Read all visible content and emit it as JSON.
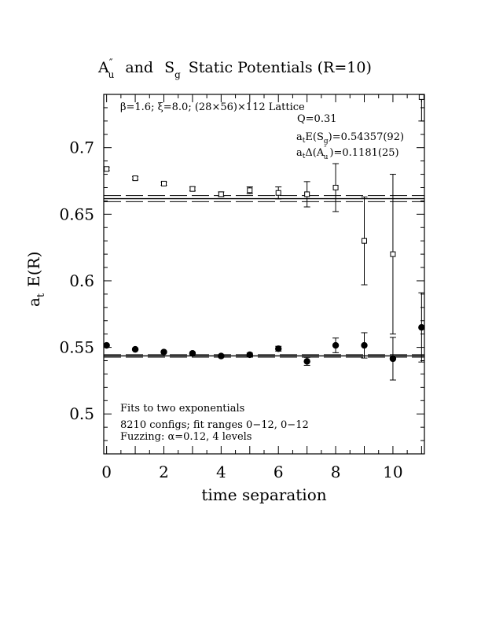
{
  "chart_data": {
    "type": "scatter",
    "title_main": "A",
    "title_main_sup": "″",
    "title_main_sub": "u",
    "title_and": "and",
    "title_s": "S",
    "title_s_sub": "g",
    "title_rest": "Static Potentials (R=10)",
    "xlabel": "time separation",
    "ylabel_a": "a",
    "ylabel_sub": "t",
    "ylabel_rest": "E(R)",
    "xlim": [
      -0.1,
      11.1
    ],
    "ylim": [
      0.47,
      0.74
    ],
    "xticks": [
      0,
      2,
      4,
      6,
      8,
      10
    ],
    "xtick_labels": [
      "0",
      "2",
      "4",
      "6",
      "8",
      "10"
    ],
    "yticks": [
      0.5,
      0.55,
      0.6,
      0.65,
      0.7
    ],
    "ytick_labels": [
      "0.5",
      "0.55",
      "0.6",
      "0.65",
      "0.7"
    ],
    "top_annotation": "β=1.6; ξ=8.0; (28×56)×112 Lattice",
    "q_label": "Q=0.31",
    "es_label_a": "a",
    "es_label_sub": "t",
    "es_label_rest": "E(S",
    "es_label_g": "g",
    "es_label_val": ")=0.54357(92)",
    "da_label_a": "a",
    "da_label_sub": "t",
    "da_label_rest": "Δ(A",
    "da_label_sup": "″",
    "da_label_u": "u",
    "da_label_val": ")=0.1181(25)",
    "bottom_note_1": "Fits to two exponentials",
    "bottom_note_2": "8210 configs; fit ranges 0−12, 0−12",
    "bottom_note_3_prefix": "Fuzzing: ",
    "bottom_note_3_alpha": "α",
    "bottom_note_3_suffix": "=0.12, 4 levels",
    "series": [
      {
        "name": "A″u",
        "marker": "open-square",
        "x": [
          0,
          1,
          2,
          3,
          4,
          5,
          6,
          7,
          8,
          9,
          10,
          11
        ],
        "y": [
          0.684,
          0.677,
          0.673,
          0.669,
          0.665,
          0.668,
          0.666,
          0.665,
          0.67,
          0.63,
          0.62,
          0.738
        ],
        "err": [
          0.0012,
          0.0012,
          0.0012,
          0.0015,
          0.0018,
          0.0025,
          0.0045,
          0.0095,
          0.018,
          0.033,
          0.06,
          0.018
        ]
      },
      {
        "name": "Sg",
        "marker": "filled-circle",
        "x": [
          0,
          1,
          2,
          3,
          4,
          5,
          6,
          7,
          8,
          9,
          10,
          11
        ],
        "y": [
          0.5515,
          0.5485,
          0.5465,
          0.5455,
          0.5435,
          0.5445,
          0.549,
          0.5395,
          0.5515,
          0.5515,
          0.5415,
          0.565
        ],
        "err": [
          0.0006,
          0.0006,
          0.0007,
          0.0008,
          0.0009,
          0.0012,
          0.0018,
          0.003,
          0.0055,
          0.0095,
          0.016,
          0.026
        ]
      }
    ],
    "fit_bands": [
      {
        "center": 0.6617,
        "half_width": 0.0023
      },
      {
        "center": 0.54357,
        "half_width": 0.00092
      }
    ]
  }
}
